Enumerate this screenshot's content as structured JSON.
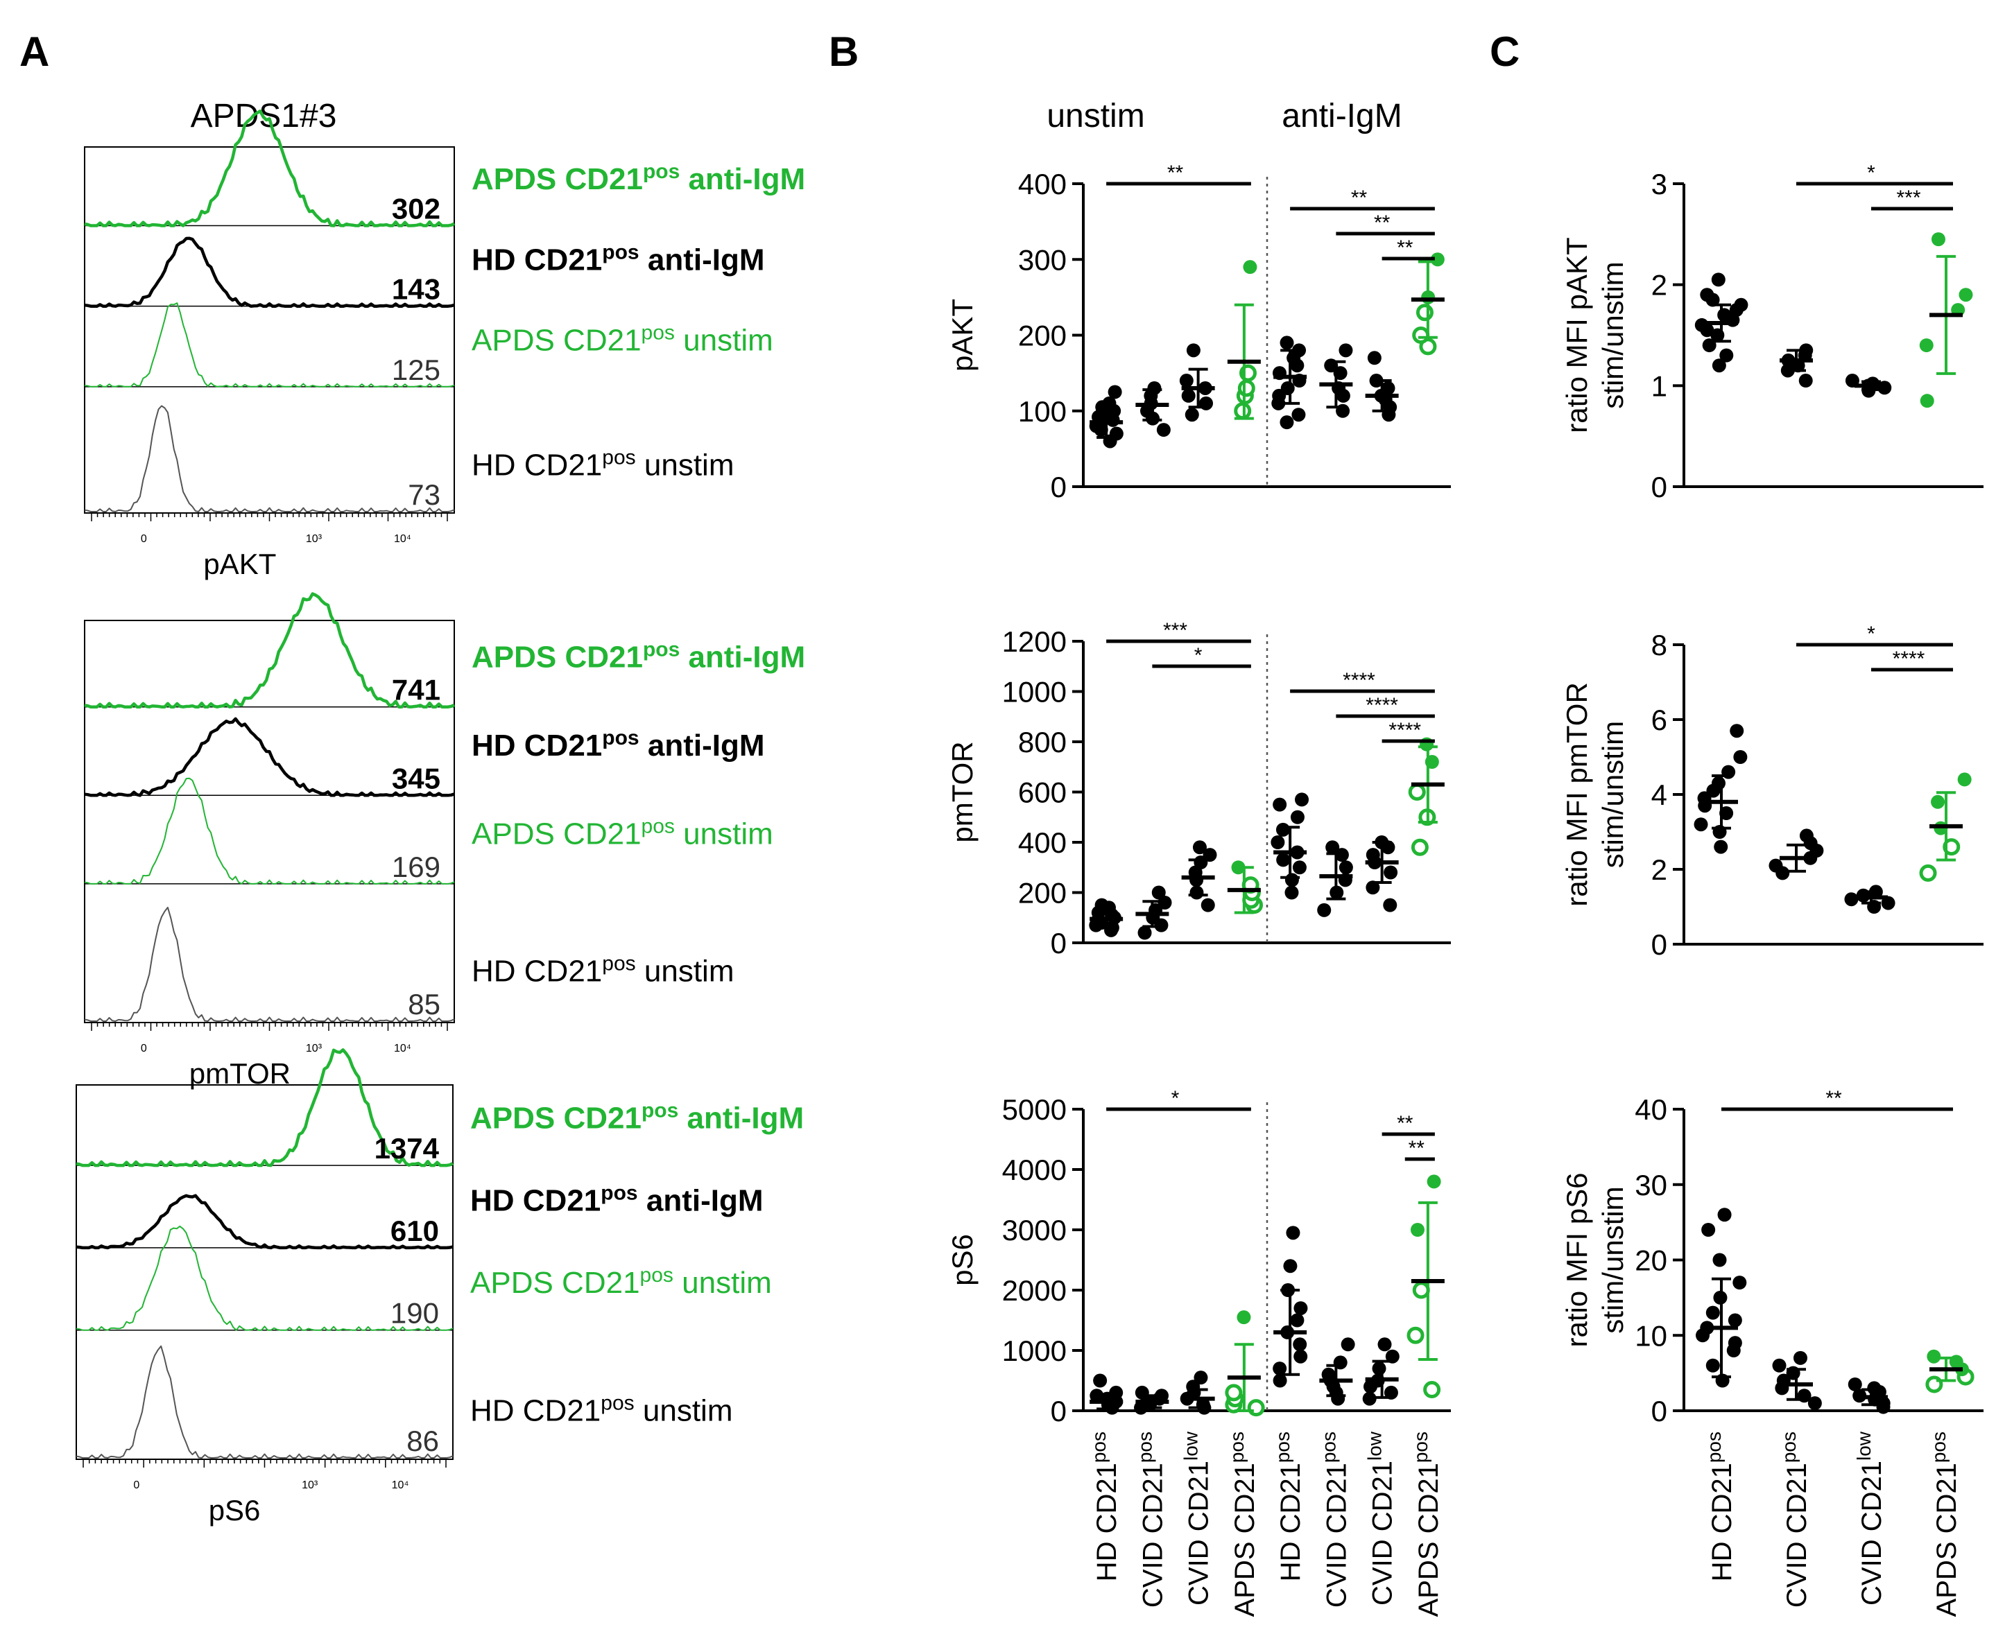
{
  "colors": {
    "black": "#000000",
    "green": "#22b534",
    "gray": "#555555"
  },
  "panels": {
    "a": "A",
    "b": "B",
    "c": "C"
  },
  "panel_a": {
    "title": "APDS1#3",
    "legend_sup": "pos",
    "legend": [
      {
        "pre": "APDS CD21",
        "post": " anti-IgM",
        "color": "green",
        "bold": true
      },
      {
        "pre": "HD CD21",
        "post": " anti-IgM",
        "color": "black",
        "bold": true
      },
      {
        "pre": "APDS CD21",
        "post": " unstim",
        "color": "green",
        "bold": false
      },
      {
        "pre": "HD CD21",
        "post": " unstim",
        "color": "black",
        "bold": false
      }
    ],
    "ticks": [
      "0",
      "10³",
      "10⁴"
    ],
    "histograms": [
      {
        "marker": "pAKT",
        "values": [
          "302",
          "143",
          "125",
          "73"
        ]
      },
      {
        "marker": "pmTOR",
        "values": [
          "741",
          "345",
          "169",
          "85"
        ]
      },
      {
        "marker": "pS6",
        "values": [
          "1374",
          "610",
          "190",
          "86"
        ]
      }
    ]
  },
  "chart_data": [
    {
      "type": "scatter",
      "panel": "B",
      "title": "pAKT",
      "ylabel": "pAKT",
      "ylim": [
        0,
        400
      ],
      "yticks": [
        "0",
        "100",
        "200",
        "300",
        "400"
      ],
      "group_labels": [
        "unstim",
        "anti-IgM"
      ],
      "categories": [
        "HD CD21pos",
        "CVID CD21pos",
        "CVID CD21low",
        "APDS CD21pos",
        "HD CD21pos",
        "CVID CD21pos",
        "CVID CD21low",
        "APDS CD21pos"
      ],
      "series": [
        {
          "name": "HD CD21pos unstim",
          "points": [
            60,
            70,
            75,
            80,
            85,
            88,
            92,
            96,
            100,
            105,
            110,
            125
          ],
          "mean": 85,
          "sd": 20
        },
        {
          "name": "CVID CD21pos unstim",
          "points": [
            75,
            90,
            100,
            110,
            120,
            130
          ],
          "mean": 108,
          "sd": 20
        },
        {
          "name": "CVID CD21low unstim",
          "points": [
            95,
            110,
            120,
            130,
            140,
            180
          ],
          "mean": 130,
          "sd": 25
        },
        {
          "name": "APDS CD21pos unstim",
          "points": [
            100,
            120,
            130,
            150,
            290
          ],
          "mean": 165,
          "sd": 75
        },
        {
          "name": "HD CD21pos anti-IgM",
          "points": [
            85,
            95,
            110,
            120,
            130,
            140,
            150,
            160,
            170,
            180,
            190
          ],
          "mean": 145,
          "sd": 35
        },
        {
          "name": "CVID CD21pos anti-IgM",
          "points": [
            100,
            120,
            130,
            150,
            160,
            180
          ],
          "mean": 135,
          "sd": 30
        },
        {
          "name": "CVID CD21low anti-IgM",
          "points": [
            95,
            105,
            115,
            120,
            130,
            140,
            170
          ],
          "mean": 120,
          "sd": 20
        },
        {
          "name": "APDS CD21pos anti-IgM",
          "points": [
            185,
            200,
            230,
            250,
            300
          ],
          "mean": 247,
          "sd": 50
        }
      ],
      "sig": [
        {
          "from": 0,
          "to": 3,
          "label": "**"
        },
        {
          "from": 4,
          "to": 7,
          "label": "**"
        },
        {
          "from": 5,
          "to": 7,
          "label": "**"
        },
        {
          "from": 6,
          "to": 7,
          "label": "**"
        }
      ]
    },
    {
      "type": "scatter",
      "panel": "B",
      "title": "pmTOR",
      "ylabel": "pmTOR",
      "ylim": [
        0,
        1200
      ],
      "yticks": [
        "0",
        "200",
        "400",
        "600",
        "800",
        "1000",
        "1200"
      ],
      "categories": [
        "HD CD21pos",
        "CVID CD21pos",
        "CVID CD21low",
        "APDS CD21pos",
        "HD CD21pos",
        "CVID CD21pos",
        "CVID CD21low",
        "APDS CD21pos"
      ],
      "series": [
        {
          "name": "HD CD21pos unstim",
          "points": [
            50,
            60,
            70,
            80,
            90,
            100,
            110,
            120,
            140,
            150
          ],
          "mean": 95,
          "sd": 30
        },
        {
          "name": "CVID CD21pos unstim",
          "points": [
            40,
            70,
            100,
            130,
            160,
            200
          ],
          "mean": 115,
          "sd": 50
        },
        {
          "name": "CVID CD21low unstim",
          "points": [
            150,
            200,
            250,
            280,
            320,
            350,
            380
          ],
          "mean": 260,
          "sd": 70
        },
        {
          "name": "APDS CD21pos unstim",
          "points": [
            150,
            170,
            200,
            230,
            300
          ],
          "mean": 210,
          "sd": 90
        },
        {
          "name": "HD CD21pos anti-IgM",
          "points": [
            200,
            250,
            300,
            330,
            360,
            400,
            450,
            500,
            550,
            570
          ],
          "mean": 360,
          "sd": 100
        },
        {
          "name": "CVID CD21pos anti-IgM",
          "points": [
            130,
            200,
            250,
            300,
            350,
            380
          ],
          "mean": 265,
          "sd": 90
        },
        {
          "name": "CVID CD21low anti-IgM",
          "points": [
            150,
            220,
            280,
            320,
            350,
            380,
            400
          ],
          "mean": 320,
          "sd": 80
        },
        {
          "name": "APDS CD21pos anti-IgM",
          "points": [
            380,
            500,
            600,
            720,
            790
          ],
          "mean": 630,
          "sd": 150
        }
      ],
      "sig": [
        {
          "from": 0,
          "to": 3,
          "label": "***"
        },
        {
          "from": 1,
          "to": 3,
          "label": "*"
        },
        {
          "from": 4,
          "to": 7,
          "label": "****"
        },
        {
          "from": 5,
          "to": 7,
          "label": "****"
        },
        {
          "from": 6,
          "to": 7,
          "label": "****"
        }
      ]
    },
    {
      "type": "scatter",
      "panel": "B",
      "title": "pS6",
      "ylabel": "pS6",
      "ylim": [
        0,
        5000
      ],
      "yticks": [
        "0",
        "1000",
        "2000",
        "3000",
        "4000",
        "5000"
      ],
      "categories": [
        "HD CD21pos",
        "CVID CD21pos",
        "CVID CD21low",
        "APDS CD21pos",
        "HD CD21pos",
        "CVID CD21pos",
        "CVID CD21low",
        "APDS CD21pos"
      ],
      "series": [
        {
          "name": "HD CD21pos unstim",
          "points": [
            50,
            100,
            150,
            200,
            250,
            300,
            500
          ],
          "mean": 150,
          "sd": 120
        },
        {
          "name": "CVID CD21pos unstim",
          "points": [
            50,
            100,
            150,
            200,
            250,
            300
          ],
          "mean": 150,
          "sd": 100
        },
        {
          "name": "CVID CD21low unstim",
          "points": [
            50,
            100,
            200,
            300,
            400,
            550
          ],
          "mean": 200,
          "sd": 150
        },
        {
          "name": "APDS CD21pos unstim",
          "points": [
            50,
            100,
            200,
            300,
            1550
          ],
          "mean": 550,
          "sd": 550
        },
        {
          "name": "HD CD21pos anti-IgM",
          "points": [
            500,
            700,
            900,
            1100,
            1300,
            1500,
            1700,
            2000,
            2400,
            2950
          ],
          "mean": 1300,
          "sd": 700
        },
        {
          "name": "CVID CD21pos anti-IgM",
          "points": [
            200,
            300,
            400,
            500,
            600,
            800,
            1100
          ],
          "mean": 500,
          "sd": 250
        },
        {
          "name": "CVID CD21low anti-IgM",
          "points": [
            200,
            300,
            400,
            500,
            700,
            900,
            1100
          ],
          "mean": 520,
          "sd": 300
        },
        {
          "name": "APDS CD21pos anti-IgM",
          "points": [
            350,
            1250,
            2000,
            3000,
            3800
          ],
          "mean": 2150,
          "sd": 1300
        }
      ],
      "sig": [
        {
          "from": 0,
          "to": 3,
          "label": "*"
        },
        {
          "from": 6,
          "to": 7,
          "label": "**"
        },
        {
          "from": 7,
          "to": 7,
          "label": "**"
        }
      ]
    },
    {
      "type": "scatter",
      "panel": "C",
      "title": "ratio MFI pAKT stim/unstim",
      "ylabel": [
        "ratio MFI pAKT",
        "stim/unstim"
      ],
      "ylim": [
        0,
        3
      ],
      "yticks": [
        "0",
        "1",
        "2",
        "3"
      ],
      "categories": [
        "HD CD21pos",
        "CVID CD21pos",
        "CVID CD21low",
        "APDS CD21pos"
      ],
      "series": [
        {
          "name": "HD CD21pos",
          "points": [
            1.2,
            1.3,
            1.4,
            1.5,
            1.55,
            1.6,
            1.65,
            1.7,
            1.75,
            1.8,
            1.85,
            1.9,
            2.05
          ],
          "mean": 1.62,
          "sd": 0.18
        },
        {
          "name": "CVID CD21pos",
          "points": [
            1.05,
            1.15,
            1.2,
            1.25,
            1.3,
            1.35
          ],
          "mean": 1.25,
          "sd": 0.1
        },
        {
          "name": "CVID CD21low",
          "points": [
            0.95,
            0.98,
            1.0,
            1.02,
            1.05
          ],
          "mean": 1.0,
          "sd": 0.04
        },
        {
          "name": "APDS CD21pos",
          "points": [
            0.85,
            1.4,
            1.75,
            1.9,
            2.45
          ],
          "mean": 1.7,
          "sd": 0.58
        }
      ],
      "sig": [
        {
          "from": 1,
          "to": 3,
          "label": "*"
        },
        {
          "from": 2,
          "to": 3,
          "label": "***"
        }
      ]
    },
    {
      "type": "scatter",
      "panel": "C",
      "title": "ratio MFI pmTOR stim/unstim",
      "ylabel": [
        "ratio MFI pmTOR",
        "stim/unstim"
      ],
      "ylim": [
        0,
        8
      ],
      "yticks": [
        "0",
        "2",
        "4",
        "6",
        "8"
      ],
      "categories": [
        "HD CD21pos",
        "CVID CD21pos",
        "CVID CD21low",
        "APDS CD21pos"
      ],
      "series": [
        {
          "name": "HD CD21pos",
          "points": [
            2.6,
            3.0,
            3.2,
            3.5,
            3.7,
            3.9,
            4.1,
            4.3,
            4.6,
            5.0,
            5.7
          ],
          "mean": 3.8,
          "sd": 0.7
        },
        {
          "name": "CVID CD21pos",
          "points": [
            1.9,
            2.1,
            2.3,
            2.5,
            2.7,
            2.9
          ],
          "mean": 2.3,
          "sd": 0.35
        },
        {
          "name": "CVID CD21low",
          "points": [
            1.0,
            1.1,
            1.2,
            1.3,
            1.4
          ],
          "mean": 1.25,
          "sd": 0.15
        },
        {
          "name": "APDS CD21pos",
          "points": [
            1.9,
            2.6,
            3.1,
            3.8,
            4.4
          ],
          "mean": 3.15,
          "sd": 0.9
        }
      ],
      "sig": [
        {
          "from": 1,
          "to": 3,
          "label": "*"
        },
        {
          "from": 2,
          "to": 3,
          "label": "****"
        }
      ]
    },
    {
      "type": "scatter",
      "panel": "C",
      "title": "ratio MFI pS6 stim/unstim",
      "ylabel": [
        "ratio MFI pS6",
        "stim/unstim"
      ],
      "ylim": [
        0,
        40
      ],
      "yticks": [
        "0",
        "10",
        "20",
        "30",
        "40"
      ],
      "categories": [
        "HD CD21pos",
        "CVID CD21pos",
        "CVID CD21low",
        "APDS CD21pos"
      ],
      "series": [
        {
          "name": "HD CD21pos",
          "points": [
            4,
            6,
            8,
            9,
            10,
            11,
            12,
            13,
            15,
            17,
            20,
            24,
            26
          ],
          "mean": 11,
          "sd": 6.5
        },
        {
          "name": "CVID CD21pos",
          "points": [
            1,
            2,
            3,
            4,
            5,
            6,
            7
          ],
          "mean": 3.5,
          "sd": 2
        },
        {
          "name": "CVID CD21low",
          "points": [
            0.5,
            1,
            1.5,
            2,
            2.5,
            3,
            3.5
          ],
          "mean": 1.8,
          "sd": 1
        },
        {
          "name": "APDS CD21pos",
          "points": [
            3.5,
            4.5,
            5.5,
            6.5,
            7.2
          ],
          "mean": 5.5,
          "sd": 1.5
        }
      ],
      "sig": [
        {
          "from": 0,
          "to": 3,
          "label": "**"
        }
      ]
    }
  ]
}
